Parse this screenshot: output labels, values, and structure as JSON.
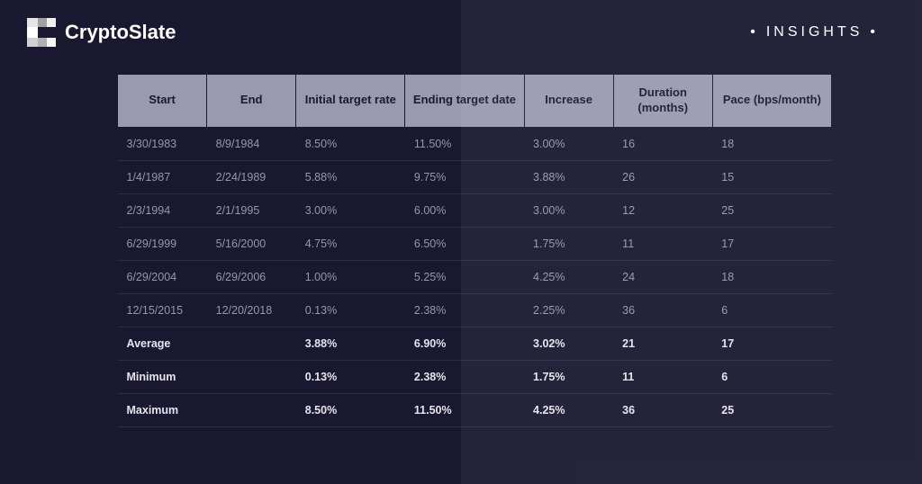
{
  "brand": {
    "name": "CryptoSlate"
  },
  "insights_label": "INSIGHTS",
  "table": {
    "columns": [
      "Start",
      "End",
      "Initial target rate",
      "Ending target date",
      "Increase",
      "Duration (months)",
      "Pace (bps/month)"
    ],
    "rows": [
      [
        "3/30/1983",
        "8/9/1984",
        "8.50%",
        "11.50%",
        "3.00%",
        "16",
        "18"
      ],
      [
        "1/4/1987",
        "2/24/1989",
        "5.88%",
        "9.75%",
        "3.88%",
        "26",
        "15"
      ],
      [
        "2/3/1994",
        "2/1/1995",
        "3.00%",
        "6.00%",
        "3.00%",
        "12",
        "25"
      ],
      [
        "6/29/1999",
        "5/16/2000",
        "4.75%",
        "6.50%",
        "1.75%",
        "11",
        "17"
      ],
      [
        "6/29/2004",
        "6/29/2006",
        "1.00%",
        "5.25%",
        "4.25%",
        "24",
        "18"
      ],
      [
        "12/15/2015",
        "12/20/2018",
        "0.13%",
        "2.38%",
        "2.25%",
        "36",
        "6"
      ]
    ],
    "summary": [
      [
        "Average",
        "",
        "3.88%",
        "6.90%",
        "3.02%",
        "21",
        "17"
      ],
      [
        "Minimum",
        "",
        "0.13%",
        "2.38%",
        "1.75%",
        "11",
        "6"
      ],
      [
        "Maximum",
        "",
        "8.50%",
        "11.50%",
        "4.25%",
        "36",
        "25"
      ]
    ]
  },
  "colors": {
    "background": "#1a1830",
    "header_bg": "#9b99b1",
    "header_text": "#1a1830",
    "cell_text": "#9896ad",
    "summary_text": "#e5e4ee",
    "row_border": "#2d2b45"
  }
}
